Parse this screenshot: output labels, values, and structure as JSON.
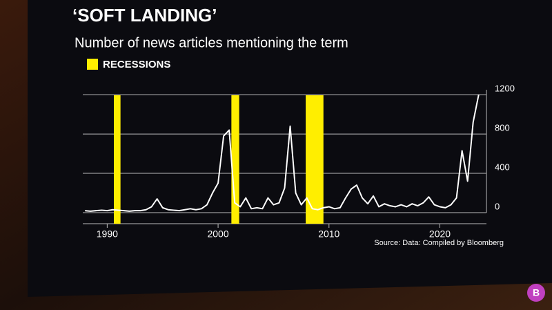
{
  "chart_data": {
    "type": "line",
    "title": "‘SOFT LANDING’",
    "subtitle": "Number of news articles mentioning the term",
    "legend_label": "RECESSIONS",
    "recession_color": "#ffee00",
    "recessions": [
      {
        "start": 1990.6,
        "end": 1991.2
      },
      {
        "start": 2001.2,
        "end": 2001.9
      },
      {
        "start": 2007.9,
        "end": 2009.5
      }
    ],
    "source": "Source: Data: Compiled by Bloomberg",
    "x": [
      1988,
      1988.5,
      1989,
      1989.5,
      1990,
      1990.5,
      1991,
      1991.5,
      1992,
      1992.5,
      1993,
      1993.5,
      1994,
      1994.5,
      1995,
      1995.5,
      1996,
      1996.5,
      1997,
      1997.5,
      1998,
      1998.5,
      1999,
      1999.5,
      2000,
      2000.5,
      2001,
      2001.5,
      2002,
      2002.5,
      2003,
      2003.5,
      2004,
      2004.5,
      2005,
      2005.5,
      2006,
      2006.5,
      2007,
      2007.5,
      2008,
      2008.5,
      2009,
      2009.5,
      2010,
      2010.5,
      2011,
      2011.5,
      2012,
      2012.5,
      2013,
      2013.5,
      2014,
      2014.5,
      2015,
      2015.5,
      2016,
      2016.5,
      2017,
      2017.5,
      2018,
      2018.5,
      2019,
      2019.5,
      2020,
      2020.5,
      2021,
      2021.5,
      2022,
      2022.5,
      2023,
      2023.5
    ],
    "series": [
      {
        "color": "#ffffff",
        "values": [
          20,
          15,
          20,
          25,
          20,
          30,
          25,
          20,
          15,
          20,
          20,
          30,
          60,
          140,
          50,
          30,
          25,
          20,
          30,
          40,
          30,
          40,
          80,
          200,
          300,
          780,
          840,
          100,
          60,
          150,
          40,
          50,
          40,
          150,
          80,
          100,
          250,
          880,
          200,
          80,
          150,
          40,
          30,
          50,
          60,
          40,
          50,
          150,
          240,
          280,
          150,
          90,
          170,
          60,
          90,
          70,
          60,
          80,
          60,
          90,
          70,
          100,
          160,
          80,
          60,
          50,
          80,
          150,
          630,
          320,
          920,
          1200
        ]
      }
    ],
    "xlim": [
      1987.8,
      2024.2
    ],
    "ylim": [
      0,
      1250
    ],
    "xticks": [
      1990,
      2000,
      2010,
      2020
    ],
    "yticks": [
      0,
      400,
      800,
      1200
    ],
    "grid": true
  }
}
